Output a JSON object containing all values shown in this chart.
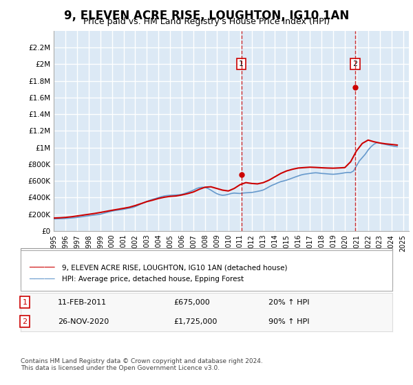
{
  "title": "9, ELEVEN ACRE RISE, LOUGHTON, IG10 1AN",
  "subtitle": "Price paid vs. HM Land Registry's House Price Index (HPI)",
  "title_fontsize": 13,
  "subtitle_fontsize": 10,
  "background_color": "#ffffff",
  "plot_bg_color": "#dce9f5",
  "grid_color": "#ffffff",
  "ylim": [
    0,
    2400000
  ],
  "xlim_start": 1995.0,
  "xlim_end": 2025.5,
  "yticks": [
    0,
    200000,
    400000,
    600000,
    800000,
    1000000,
    1200000,
    1400000,
    1600000,
    1800000,
    2000000,
    2200000
  ],
  "ytick_labels": [
    "£0",
    "£200K",
    "£400K",
    "£600K",
    "£800K",
    "£1M",
    "£1.2M",
    "£1.4M",
    "£1.6M",
    "£1.8M",
    "£2M",
    "£2.2M"
  ],
  "xticks": [
    1995,
    1996,
    1997,
    1998,
    1999,
    2000,
    2001,
    2002,
    2003,
    2004,
    2005,
    2006,
    2007,
    2008,
    2009,
    2010,
    2011,
    2012,
    2013,
    2014,
    2015,
    2016,
    2017,
    2018,
    2019,
    2020,
    2021,
    2022,
    2023,
    2024,
    2025
  ],
  "hpi_color": "#6699cc",
  "property_color": "#cc0000",
  "transaction1_x": 2011.11,
  "transaction1_y": 675000,
  "transaction1_label": "1",
  "transaction2_x": 2020.9,
  "transaction2_y": 1725000,
  "transaction2_label": "2",
  "legend_property": "9, ELEVEN ACRE RISE, LOUGHTON, IG10 1AN (detached house)",
  "legend_hpi": "HPI: Average price, detached house, Epping Forest",
  "annotation1_date": "11-FEB-2011",
  "annotation1_price": "£675,000",
  "annotation1_hpi": "20% ↑ HPI",
  "annotation2_date": "26-NOV-2020",
  "annotation2_price": "£1,725,000",
  "annotation2_hpi": "90% ↑ HPI",
  "footer": "Contains HM Land Registry data © Crown copyright and database right 2024.\nThis data is licensed under the Open Government Licence v3.0.",
  "hpi_data_x": [
    1995.0,
    1995.25,
    1995.5,
    1995.75,
    1996.0,
    1996.25,
    1996.5,
    1996.75,
    1997.0,
    1997.25,
    1997.5,
    1997.75,
    1998.0,
    1998.25,
    1998.5,
    1998.75,
    1999.0,
    1999.25,
    1999.5,
    1999.75,
    2000.0,
    2000.25,
    2000.5,
    2000.75,
    2001.0,
    2001.25,
    2001.5,
    2001.75,
    2002.0,
    2002.25,
    2002.5,
    2002.75,
    2003.0,
    2003.25,
    2003.5,
    2003.75,
    2004.0,
    2004.25,
    2004.5,
    2004.75,
    2005.0,
    2005.25,
    2005.5,
    2005.75,
    2006.0,
    2006.25,
    2006.5,
    2006.75,
    2007.0,
    2007.25,
    2007.5,
    2007.75,
    2008.0,
    2008.25,
    2008.5,
    2008.75,
    2009.0,
    2009.25,
    2009.5,
    2009.75,
    2010.0,
    2010.25,
    2010.5,
    2010.75,
    2011.0,
    2011.25,
    2011.5,
    2011.75,
    2012.0,
    2012.25,
    2012.5,
    2012.75,
    2013.0,
    2013.25,
    2013.5,
    2013.75,
    2014.0,
    2014.25,
    2014.5,
    2014.75,
    2015.0,
    2015.25,
    2015.5,
    2015.75,
    2016.0,
    2016.25,
    2016.5,
    2016.75,
    2017.0,
    2017.25,
    2017.5,
    2017.75,
    2018.0,
    2018.25,
    2018.5,
    2018.75,
    2019.0,
    2019.25,
    2019.5,
    2019.75,
    2020.0,
    2020.25,
    2020.5,
    2020.75,
    2021.0,
    2021.25,
    2021.5,
    2021.75,
    2022.0,
    2022.25,
    2022.5,
    2022.75,
    2023.0,
    2023.25,
    2023.5,
    2023.75,
    2024.0,
    2024.25,
    2024.5
  ],
  "hpi_data_y": [
    145000,
    146000,
    147000,
    148000,
    150000,
    153000,
    156000,
    159000,
    163000,
    168000,
    173000,
    178000,
    182000,
    187000,
    192000,
    196000,
    201000,
    210000,
    220000,
    230000,
    238000,
    245000,
    250000,
    255000,
    260000,
    267000,
    274000,
    281000,
    292000,
    308000,
    325000,
    340000,
    355000,
    368000,
    380000,
    390000,
    400000,
    412000,
    420000,
    425000,
    428000,
    430000,
    432000,
    434000,
    440000,
    450000,
    462000,
    475000,
    490000,
    508000,
    520000,
    525000,
    522000,
    510000,
    490000,
    468000,
    448000,
    435000,
    428000,
    432000,
    440000,
    450000,
    455000,
    452000,
    450000,
    455000,
    458000,
    460000,
    462000,
    468000,
    475000,
    482000,
    492000,
    510000,
    530000,
    548000,
    562000,
    578000,
    592000,
    600000,
    610000,
    622000,
    635000,
    648000,
    660000,
    672000,
    680000,
    685000,
    690000,
    695000,
    698000,
    695000,
    690000,
    688000,
    685000,
    682000,
    680000,
    683000,
    687000,
    692000,
    698000,
    702000,
    700000,
    720000,
    780000,
    840000,
    880000,
    920000,
    970000,
    1010000,
    1040000,
    1060000,
    1055000,
    1045000,
    1038000,
    1030000,
    1022000,
    1015000,
    1010000
  ],
  "property_data_x": [
    1995.0,
    1995.5,
    1996.0,
    1996.5,
    1997.0,
    1997.5,
    1998.0,
    1998.5,
    1999.0,
    1999.5,
    2000.0,
    2000.5,
    2001.0,
    2001.5,
    2002.0,
    2002.5,
    2003.0,
    2003.5,
    2004.0,
    2004.5,
    2005.0,
    2005.5,
    2006.0,
    2006.5,
    2007.0,
    2007.5,
    2008.0,
    2008.5,
    2009.0,
    2009.5,
    2010.0,
    2010.5,
    2011.0,
    2011.5,
    2012.0,
    2012.5,
    2013.0,
    2013.5,
    2014.0,
    2014.5,
    2015.0,
    2015.5,
    2016.0,
    2016.5,
    2017.0,
    2017.5,
    2018.0,
    2018.5,
    2019.0,
    2019.5,
    2020.0,
    2020.5,
    2021.0,
    2021.5,
    2022.0,
    2022.5,
    2023.0,
    2023.5,
    2024.0,
    2024.5
  ],
  "property_data_y": [
    155000,
    158000,
    163000,
    170000,
    180000,
    190000,
    200000,
    210000,
    222000,
    235000,
    248000,
    260000,
    272000,
    285000,
    305000,
    328000,
    352000,
    370000,
    390000,
    405000,
    415000,
    420000,
    432000,
    448000,
    468000,
    500000,
    525000,
    530000,
    510000,
    490000,
    480000,
    510000,
    555000,
    580000,
    570000,
    565000,
    580000,
    610000,
    650000,
    690000,
    720000,
    740000,
    755000,
    760000,
    765000,
    762000,
    758000,
    755000,
    753000,
    756000,
    760000,
    830000,
    960000,
    1050000,
    1090000,
    1070000,
    1055000,
    1045000,
    1038000,
    1030000
  ]
}
